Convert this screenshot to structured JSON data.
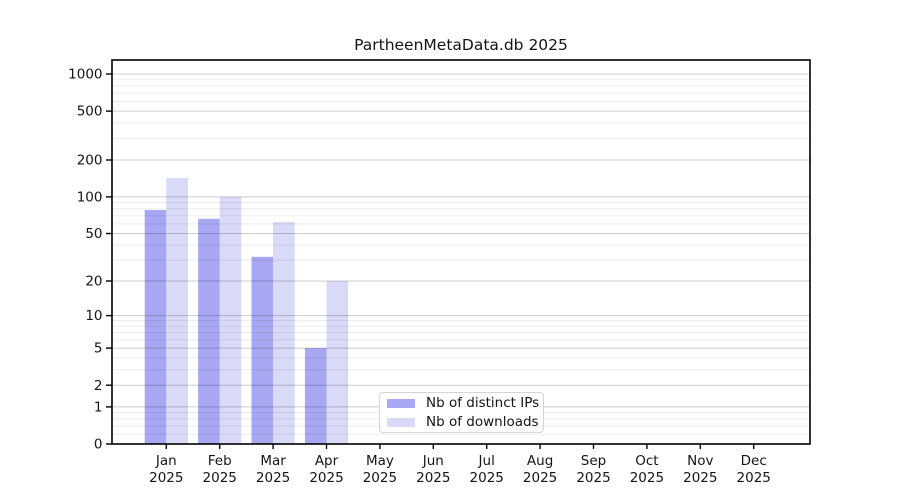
{
  "chart_data": {
    "type": "bar",
    "title": "PartheenMetaData.db 2025",
    "scale": "log(value+1)",
    "grid": "on",
    "legend_position": "lower-center-inside",
    "categories": [
      "Jan",
      "Feb",
      "Mar",
      "Apr",
      "May",
      "Jun",
      "Jul",
      "Aug",
      "Sep",
      "Oct",
      "Nov",
      "Dec"
    ],
    "category_year": "2025",
    "series": [
      {
        "name": "Nb of distinct IPs",
        "color": "#a7a7f3",
        "values": [
          78,
          66,
          32,
          5,
          0,
          0,
          0,
          0,
          0,
          0,
          0,
          0
        ]
      },
      {
        "name": "Nb of downloads",
        "color": "#d9d9f8",
        "values": [
          143,
          100,
          62,
          20,
          0,
          0,
          0,
          0,
          0,
          0,
          0,
          0
        ]
      }
    ],
    "yticks": [
      1000,
      500,
      200,
      100,
      50,
      20,
      10,
      5,
      2,
      1,
      0
    ],
    "yminor": [
      0.2,
      0.4,
      0.6,
      0.8,
      3,
      4,
      6,
      7,
      8,
      9,
      30,
      40,
      60,
      70,
      80,
      90,
      300,
      400,
      600,
      700,
      800,
      900
    ],
    "ylim": [
      0,
      1300
    ],
    "xlabel": "",
    "ylabel": "",
    "colors": {
      "axis": "#000000",
      "text": "#151515",
      "grid_major": "rgba(0,0,0,0.20)",
      "grid_minor": "rgba(0,0,0,0.075)",
      "legend_border": "#d5d5d5",
      "legend_bg": "#ffffff"
    }
  }
}
